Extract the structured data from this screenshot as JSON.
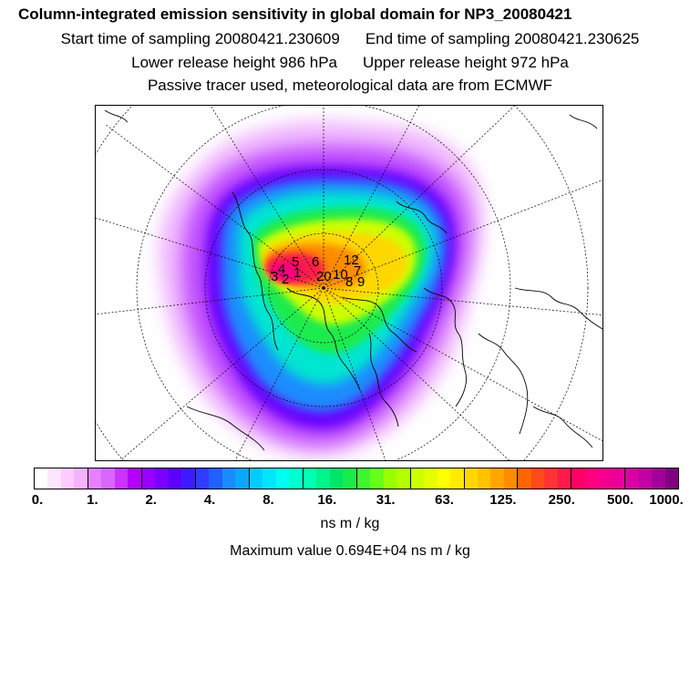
{
  "title": "Column-integrated emission sensitivity in global domain for NP3_20080421",
  "sampling": {
    "start": "Start time of sampling 20080421.230609",
    "end": "End time of sampling 20080421.230625"
  },
  "release": {
    "lower": "Lower release height  986 hPa",
    "upper": "Upper release height  972 hPa"
  },
  "tracer_note": "Passive tracer used, meteorological data are from ECMWF",
  "colorbar": {
    "ticks": [
      "0.",
      "1.",
      "2.",
      "4.",
      "8.",
      "16.",
      "31.",
      "63.",
      "125.",
      "250.",
      "500.",
      "1000."
    ],
    "colors": [
      "#ffffff",
      "#ffe6ff",
      "#ffccff",
      "#f5b3ff",
      "#e680ff",
      "#d966ff",
      "#cc33ff",
      "#b300ff",
      "#9900ff",
      "#7a00ff",
      "#5c00ff",
      "#3d1aff",
      "#2f3cff",
      "#1f60ff",
      "#1a8cff",
      "#0aa6ff",
      "#00ccff",
      "#00e6ff",
      "#00fff2",
      "#00ffd0",
      "#00ffb0",
      "#00f58c",
      "#00e66b",
      "#1aeb4d",
      "#40f530",
      "#66ff1a",
      "#99ff00",
      "#b3ff00",
      "#ccff00",
      "#e6ff00",
      "#ffff00",
      "#ffeb00",
      "#ffd700",
      "#ffc300",
      "#ffa600",
      "#ff8c00",
      "#ff6600",
      "#ff4a1a",
      "#ff3333",
      "#ff1a4a",
      "#ff0066",
      "#ff0080",
      "#f5008f",
      "#eb0099",
      "#d600a3",
      "#c200a3",
      "#a30099",
      "#800080"
    ]
  },
  "units": "ns m / kg",
  "maximum": "Maximum value  0.694E+04 ns m / kg",
  "receptor_labels": [
    "5",
    "6",
    "12",
    "4",
    "1",
    "3",
    "2",
    "20",
    "8",
    "9",
    "7",
    "10"
  ]
}
